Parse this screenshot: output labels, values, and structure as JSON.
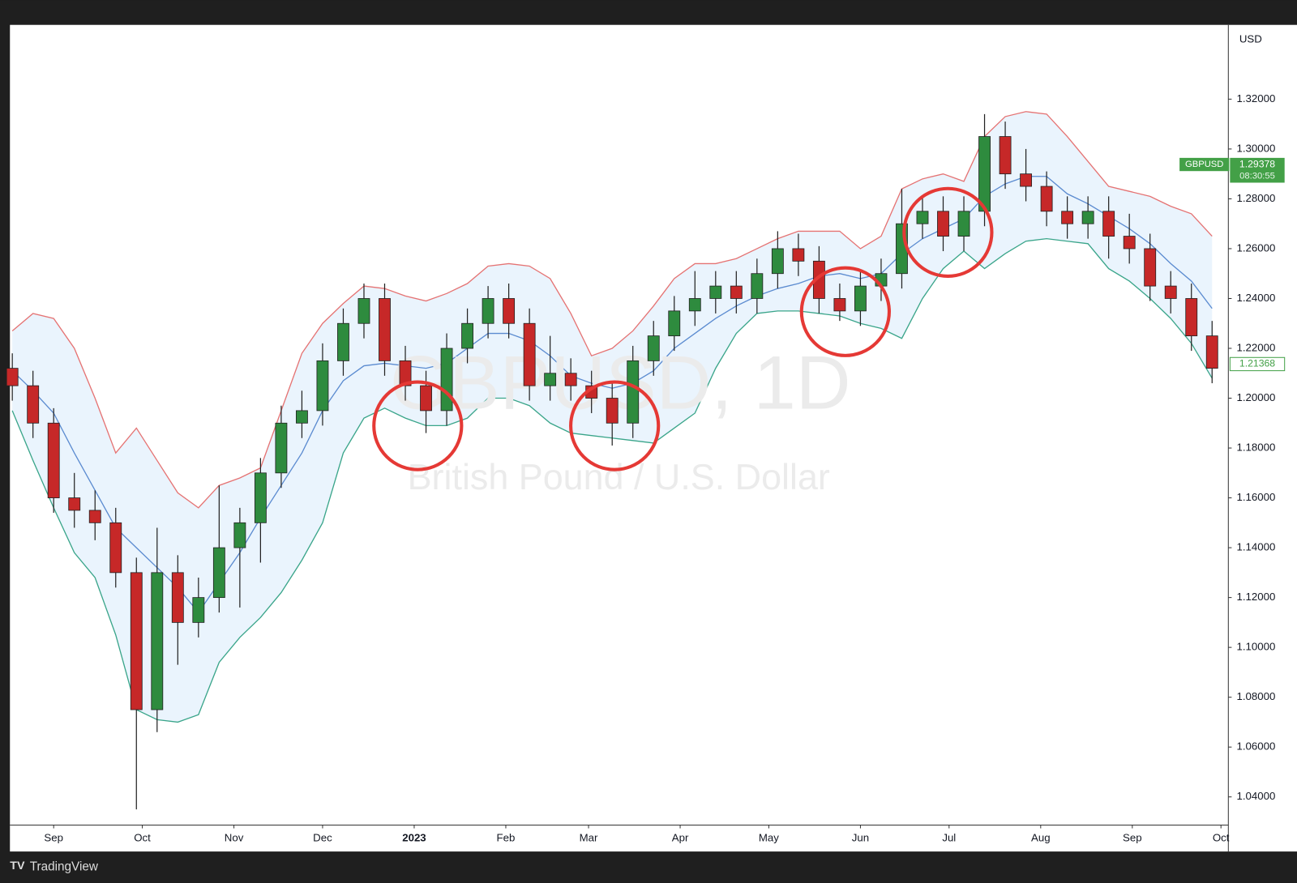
{
  "chart_data": {
    "type": "candlestick",
    "title": "GBPUSD, 1D",
    "subtitle": "British Pound / U.S. Dollar",
    "currency": "USD",
    "branding": "TradingView",
    "x": [
      -14,
      -7,
      0,
      7,
      14,
      21,
      28,
      35,
      42,
      49,
      56,
      63,
      70,
      77,
      84,
      91,
      98,
      105,
      112,
      119,
      126,
      133,
      140,
      147,
      154,
      161,
      168,
      175,
      182,
      189,
      196,
      203,
      210,
      217,
      224,
      231,
      238,
      245,
      252,
      259,
      266,
      273,
      280,
      287,
      294,
      301,
      308,
      315,
      322,
      329,
      336,
      343,
      350,
      357,
      364,
      371,
      378,
      385,
      392
    ],
    "open": [
      1.212,
      1.205,
      1.19,
      1.16,
      1.155,
      1.15,
      1.13,
      1.075,
      1.13,
      1.11,
      1.12,
      1.14,
      1.15,
      1.17,
      1.19,
      1.195,
      1.215,
      1.23,
      1.24,
      1.215,
      1.205,
      1.195,
      1.22,
      1.23,
      1.24,
      1.23,
      1.205,
      1.21,
      1.205,
      1.2,
      1.19,
      1.215,
      1.225,
      1.235,
      1.24,
      1.245,
      1.24,
      1.25,
      1.26,
      1.255,
      1.24,
      1.235,
      1.245,
      1.25,
      1.27,
      1.275,
      1.265,
      1.275,
      1.305,
      1.29,
      1.285,
      1.275,
      1.27,
      1.275,
      1.265,
      1.26,
      1.245,
      1.24,
      1.225
    ],
    "high": [
      1.218,
      1.211,
      1.196,
      1.17,
      1.163,
      1.156,
      1.136,
      1.148,
      1.137,
      1.128,
      1.165,
      1.156,
      1.176,
      1.197,
      1.203,
      1.222,
      1.236,
      1.246,
      1.246,
      1.221,
      1.211,
      1.226,
      1.236,
      1.245,
      1.246,
      1.236,
      1.225,
      1.216,
      1.211,
      1.206,
      1.221,
      1.231,
      1.241,
      1.251,
      1.251,
      1.251,
      1.256,
      1.267,
      1.266,
      1.261,
      1.246,
      1.251,
      1.256,
      1.284,
      1.281,
      1.281,
      1.281,
      1.314,
      1.311,
      1.3,
      1.291,
      1.281,
      1.281,
      1.281,
      1.274,
      1.266,
      1.251,
      1.246,
      1.231
    ],
    "low": [
      1.199,
      1.184,
      1.154,
      1.148,
      1.143,
      1.124,
      1.035,
      1.066,
      1.093,
      1.104,
      1.114,
      1.116,
      1.134,
      1.164,
      1.184,
      1.189,
      1.209,
      1.224,
      1.209,
      1.199,
      1.186,
      1.189,
      1.214,
      1.224,
      1.224,
      1.199,
      1.199,
      1.199,
      1.194,
      1.181,
      1.184,
      1.209,
      1.219,
      1.229,
      1.234,
      1.234,
      1.234,
      1.244,
      1.249,
      1.234,
      1.231,
      1.229,
      1.239,
      1.244,
      1.264,
      1.259,
      1.259,
      1.269,
      1.284,
      1.279,
      1.269,
      1.264,
      1.264,
      1.256,
      1.254,
      1.239,
      1.234,
      1.219,
      1.206
    ],
    "close": [
      1.205,
      1.19,
      1.16,
      1.155,
      1.15,
      1.13,
      1.075,
      1.13,
      1.11,
      1.12,
      1.14,
      1.15,
      1.17,
      1.19,
      1.195,
      1.215,
      1.23,
      1.24,
      1.215,
      1.205,
      1.195,
      1.22,
      1.23,
      1.24,
      1.23,
      1.205,
      1.21,
      1.205,
      1.2,
      1.19,
      1.215,
      1.225,
      1.235,
      1.24,
      1.245,
      1.24,
      1.25,
      1.26,
      1.255,
      1.24,
      1.235,
      1.245,
      1.25,
      1.27,
      1.275,
      1.265,
      1.275,
      1.305,
      1.29,
      1.285,
      1.275,
      1.27,
      1.275,
      1.265,
      1.26,
      1.245,
      1.24,
      1.225,
      1.212
    ],
    "up_color": "#2e8b3e",
    "down_color": "#c62828",
    "band_fill": "#eaf4fd",
    "series": [
      {
        "color": "#e57373",
        "values": [
          1.227,
          1.234,
          1.232,
          1.22,
          1.2,
          1.178,
          1.188,
          1.175,
          1.162,
          1.156,
          1.165,
          1.168,
          1.172,
          1.195,
          1.218,
          1.23,
          1.238,
          1.245,
          1.244,
          1.241,
          1.239,
          1.242,
          1.246,
          1.253,
          1.254,
          1.253,
          1.248,
          1.234,
          1.217,
          1.22,
          1.227,
          1.237,
          1.248,
          1.254,
          1.254,
          1.256,
          1.26,
          1.264,
          1.267,
          1.267,
          1.267,
          1.26,
          1.265,
          1.284,
          1.288,
          1.29,
          1.287,
          1.305,
          1.313,
          1.315,
          1.314,
          1.305,
          1.295,
          1.285,
          1.283,
          1.281,
          1.277,
          1.274,
          1.265
        ]
      },
      {
        "color": "#5b8bd0",
        "values": [
          1.211,
          1.203,
          1.194,
          1.178,
          1.163,
          1.148,
          1.14,
          1.132,
          1.124,
          1.114,
          1.126,
          1.138,
          1.152,
          1.165,
          1.178,
          1.195,
          1.207,
          1.213,
          1.214,
          1.213,
          1.212,
          1.214,
          1.22,
          1.226,
          1.226,
          1.223,
          1.217,
          1.209,
          1.206,
          1.204,
          1.206,
          1.211,
          1.22,
          1.226,
          1.232,
          1.237,
          1.241,
          1.244,
          1.246,
          1.249,
          1.25,
          1.248,
          1.25,
          1.258,
          1.264,
          1.268,
          1.272,
          1.281,
          1.286,
          1.289,
          1.289,
          1.282,
          1.278,
          1.273,
          1.268,
          1.262,
          1.254,
          1.247,
          1.236
        ]
      },
      {
        "color": "#3aa58a",
        "values": [
          1.195,
          1.175,
          1.156,
          1.138,
          1.128,
          1.105,
          1.075,
          1.071,
          1.07,
          1.073,
          1.094,
          1.104,
          1.112,
          1.122,
          1.135,
          1.15,
          1.178,
          1.192,
          1.196,
          1.192,
          1.189,
          1.189,
          1.192,
          1.2,
          1.2,
          1.197,
          1.19,
          1.186,
          1.185,
          1.184,
          1.183,
          1.182,
          1.188,
          1.194,
          1.212,
          1.226,
          1.234,
          1.235,
          1.235,
          1.234,
          1.233,
          1.23,
          1.228,
          1.224,
          1.24,
          1.252,
          1.259,
          1.252,
          1.258,
          1.263,
          1.264,
          1.263,
          1.262,
          1.252,
          1.247,
          1.24,
          1.232,
          1.222,
          1.208
        ]
      }
    ],
    "xlim": [
      -14.8,
      397.5
    ],
    "xticks": [
      {
        "value": 0,
        "label": "Sep"
      },
      {
        "value": 30,
        "label": "Oct"
      },
      {
        "value": 61,
        "label": "Nov"
      },
      {
        "value": 91,
        "label": "Dec"
      },
      {
        "value": 122,
        "label": "2023"
      },
      {
        "value": 153,
        "label": "Feb"
      },
      {
        "value": 181,
        "label": "Mar"
      },
      {
        "value": 212,
        "label": "Apr"
      },
      {
        "value": 242,
        "label": "May"
      },
      {
        "value": 273,
        "label": "Jun"
      },
      {
        "value": 303,
        "label": "Jul"
      },
      {
        "value": 334,
        "label": "Aug"
      },
      {
        "value": 365,
        "label": "Sep"
      },
      {
        "value": 395,
        "label": "Oct"
      }
    ],
    "ylim": [
      1.0287,
      1.3498
    ],
    "yticks": [
      {
        "value": 1.04,
        "label": "1.04000"
      },
      {
        "value": 1.06,
        "label": "1.06000"
      },
      {
        "value": 1.08,
        "label": "1.08000"
      },
      {
        "value": 1.1,
        "label": "1.10000"
      },
      {
        "value": 1.12,
        "label": "1.12000"
      },
      {
        "value": 1.14,
        "label": "1.14000"
      },
      {
        "value": 1.16,
        "label": "1.16000"
      },
      {
        "value": 1.18,
        "label": "1.18000"
      },
      {
        "value": 1.2,
        "label": "1.20000"
      },
      {
        "value": 1.22,
        "label": "1.22000"
      },
      {
        "value": 1.24,
        "label": "1.24000"
      },
      {
        "value": 1.26,
        "label": "1.26000"
      },
      {
        "value": 1.28,
        "label": "1.28000"
      },
      {
        "value": 1.3,
        "label": "1.30000"
      },
      {
        "value": 1.32,
        "label": "1.32000"
      }
    ],
    "symbol_tag": {
      "symbol": "GBPUSD",
      "price": 1.29378,
      "time": "08:30:55",
      "color": "#43a047"
    },
    "last_price": 1.21368,
    "last_price_color": "#43a047"
  }
}
